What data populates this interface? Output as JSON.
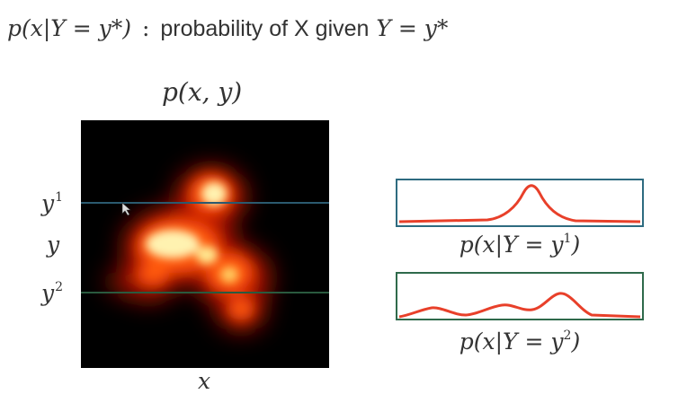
{
  "title": {
    "formula": "p(x|Y = y*)",
    "separator": ":",
    "text": "probability of X given",
    "condition": "Y = y*"
  },
  "joint_label": "p(x, y)",
  "axis": {
    "x_label": "x",
    "y_label": "y",
    "y1_base": "y",
    "y1_sup": "1",
    "y2_base": "y",
    "y2_sup": "2"
  },
  "conditionals": [
    {
      "prefix": "p(x|Y = y",
      "sup": "1",
      "suffix": ")",
      "border_color": "#2e6b80",
      "line_color": "#2b5a70"
    },
    {
      "prefix": "p(x|Y = y",
      "sup": "2",
      "suffix": ")",
      "border_color": "#2f6a4b",
      "line_color": "#2a5a3e"
    }
  ],
  "colors": {
    "curve": "#e8402a",
    "heat_hot": "#fff7c8",
    "heat_mid": "#ff5a10",
    "background": "#000000"
  }
}
